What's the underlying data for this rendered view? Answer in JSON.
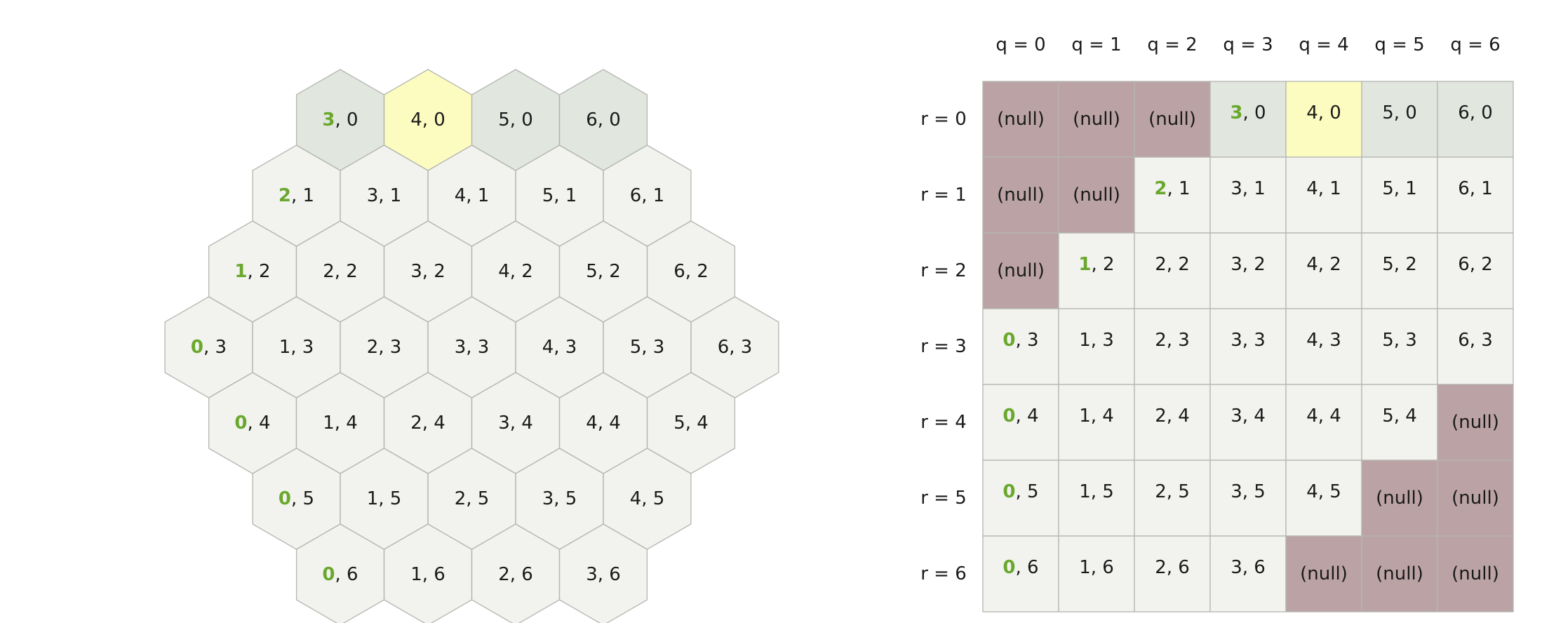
{
  "header_labels": {
    "columns": [
      "q = 0",
      "q = 1",
      "q = 2",
      "q = 3",
      "q = 4",
      "q = 5",
      "q = 6"
    ],
    "rows": [
      "r = 0",
      "r = 1",
      "r = 2",
      "r = 3",
      "r = 4",
      "r = 5",
      "r = 6"
    ]
  },
  "null_text": "(null)",
  "separator": ", ",
  "colors": {
    "hex_default": "#f2f3ef",
    "hex_row0": "#e1e6df",
    "highlight": "#fdfcc0",
    "null_fill": "#bba3a5",
    "stroke": "#b4b6b0",
    "accent_green": "#6aa82d",
    "text": "#1a1a1a"
  },
  "highlight_cell": {
    "q": 4,
    "r": 0
  },
  "grid": {
    "rows": [
      {
        "r": 0,
        "q_min": 3,
        "q_max": 6
      },
      {
        "r": 1,
        "q_min": 2,
        "q_max": 6
      },
      {
        "r": 2,
        "q_min": 1,
        "q_max": 6
      },
      {
        "r": 3,
        "q_min": 0,
        "q_max": 6
      },
      {
        "r": 4,
        "q_min": 0,
        "q_max": 5
      },
      {
        "r": 5,
        "q_min": 0,
        "q_max": 4
      },
      {
        "r": 6,
        "q_min": 0,
        "q_max": 3
      }
    ]
  }
}
